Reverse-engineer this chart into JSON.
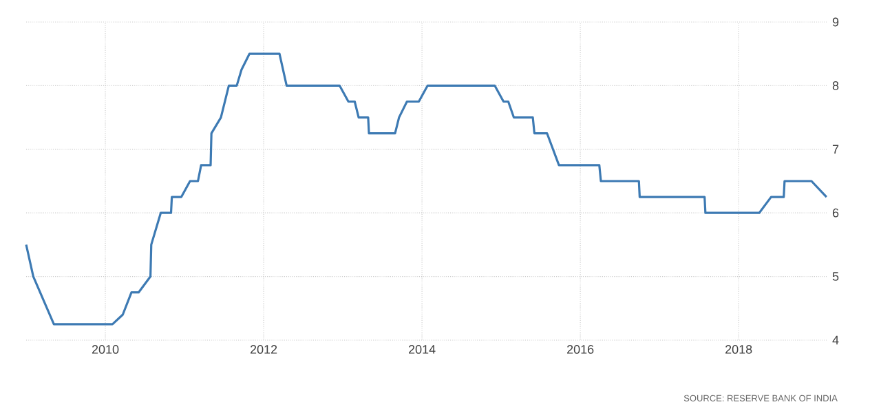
{
  "chart_data": {
    "type": "line",
    "x": [
      2009.0,
      2009.09,
      2009.35,
      2010.09,
      2010.22,
      2010.33,
      2010.42,
      2010.57,
      2010.58,
      2010.7,
      2010.83,
      2010.84,
      2010.96,
      2011.07,
      2011.17,
      2011.21,
      2011.33,
      2011.34,
      2011.46,
      2011.56,
      2011.66,
      2011.72,
      2011.82,
      2012.2,
      2012.29,
      2012.96,
      2013.07,
      2013.15,
      2013.2,
      2013.32,
      2013.33,
      2013.66,
      2013.71,
      2013.81,
      2013.96,
      2014.07,
      2014.92,
      2015.03,
      2015.09,
      2015.16,
      2015.4,
      2015.42,
      2015.58,
      2015.73,
      2016.24,
      2016.26,
      2016.74,
      2016.75,
      2017.57,
      2017.58,
      2018.26,
      2018.41,
      2018.57,
      2018.58,
      2018.92,
      2019.11
    ],
    "series": [
      {
        "color": "#3d7ab3",
        "values": [
          5.5,
          5.0,
          4.25,
          4.25,
          4.4,
          4.75,
          4.75,
          5.0,
          5.5,
          6.0,
          6.0,
          6.25,
          6.25,
          6.5,
          6.5,
          6.75,
          6.75,
          7.25,
          7.5,
          8.0,
          8.0,
          8.25,
          8.5,
          8.5,
          8.0,
          8.0,
          7.75,
          7.75,
          7.5,
          7.5,
          7.25,
          7.25,
          7.5,
          7.75,
          7.75,
          8.0,
          8.0,
          7.75,
          7.75,
          7.5,
          7.5,
          7.25,
          7.25,
          6.75,
          6.75,
          6.5,
          6.5,
          6.25,
          6.25,
          6.0,
          6.0,
          6.25,
          6.25,
          6.5,
          6.5,
          6.25
        ]
      }
    ],
    "xlim": [
      2009.0,
      2019.12
    ],
    "xticks": [
      2010,
      2012,
      2014,
      2016,
      2018
    ],
    "ylim": [
      4,
      9
    ],
    "yticks": [
      4,
      5,
      6,
      7,
      8,
      9
    ],
    "grid": true,
    "line_style": "solid",
    "marker": "none",
    "annotations": [
      "SOURCE: RESERVE BANK OF INDIA"
    ]
  }
}
